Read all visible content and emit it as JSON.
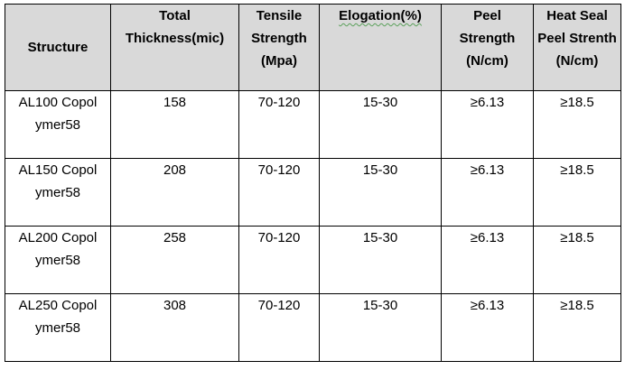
{
  "table": {
    "header": [
      "Structure",
      "Total Thickness(mic)",
      "Tensile Strength (Mpa)",
      "Elogation(%)",
      "Peel Strength (N/cm)",
      "Heat Seal Peel Strenth (N/cm)"
    ],
    "rows": [
      [
        "AL100 Copolymer58",
        "158",
        "70-120",
        "15-30",
        "≥6.13",
        "≥18.5"
      ],
      [
        "AL150 Copolymer58",
        "208",
        "70-120",
        "15-30",
        "≥6.13",
        "≥18.5"
      ],
      [
        "AL200 Copolymer58",
        "258",
        "70-120",
        "15-30",
        "≥6.13",
        "≥18.5"
      ],
      [
        "AL250 Copolymer58",
        "308",
        "70-120",
        "15-30",
        "≥6.13",
        "≥18.5"
      ]
    ]
  }
}
